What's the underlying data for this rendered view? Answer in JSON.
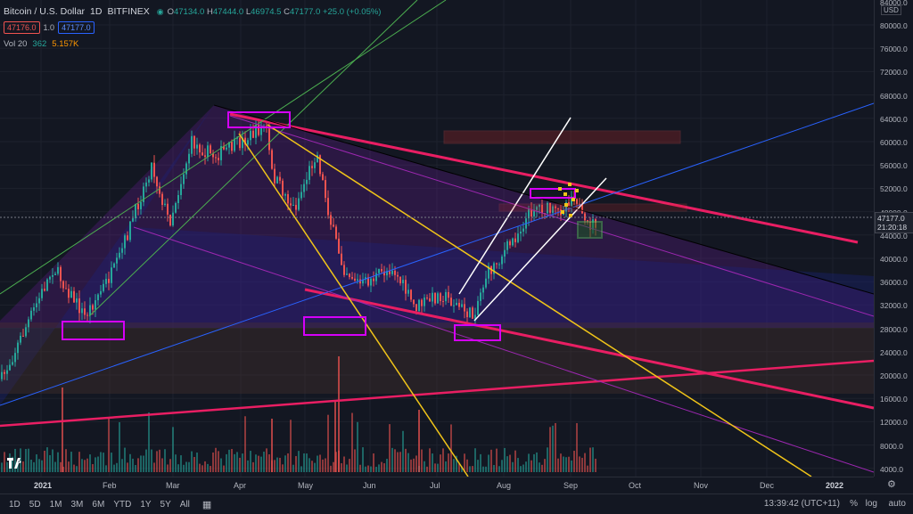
{
  "symbol": {
    "title": "Bitcoin / U.S. Dollar",
    "interval": "1D",
    "exchange": "BITFINEX",
    "open_label": "O",
    "open": "47134.0",
    "high_label": "H",
    "high": "47444.0",
    "low_label": "L",
    "low": "46974.5",
    "close_label": "C",
    "close": "47177.0",
    "change": "+25.0 (+0.05%)"
  },
  "trade": {
    "sell": "47176.0",
    "spread": "1.0",
    "buy": "47177.0"
  },
  "volume": {
    "label": "Vol 20",
    "value": "362",
    "ma": "5.157K"
  },
  "price_scale": {
    "currency": "USD",
    "ticks": [
      "84000.0",
      "80000.0",
      "76000.0",
      "72000.0",
      "68000.0",
      "64000.0",
      "60000.0",
      "56000.0",
      "52000.0",
      "48000.0",
      "44000.0",
      "40000.0",
      "36000.0",
      "32000.0",
      "28000.0",
      "24000.0",
      "20000.0",
      "16000.0",
      "12000.0",
      "8000.0",
      "4000.0"
    ],
    "last_price": "47177.0",
    "countdown": "21:20:18"
  },
  "time_axis": [
    "2021",
    "Feb",
    "Mar",
    "Apr",
    "May",
    "Jun",
    "Jul",
    "Aug",
    "Sep",
    "Oct",
    "Nov",
    "Dec",
    "2022"
  ],
  "ranges": [
    "1D",
    "5D",
    "1M",
    "3M",
    "6M",
    "YTD",
    "1Y",
    "5Y",
    "All"
  ],
  "clock": "13:39:42 (UTC+11)",
  "scale_options": {
    "percent": "%",
    "log": "log",
    "auto": "auto"
  },
  "colors": {
    "bg": "#131722",
    "up": "#26a69a",
    "down": "#ef5350",
    "pink": "#e91e63",
    "yellow": "#f0c419",
    "purple": "#9c27b0",
    "magenta": "#d500f9",
    "blue": "#2962ff",
    "green": "#4caf50",
    "white": "#ffffff"
  }
}
